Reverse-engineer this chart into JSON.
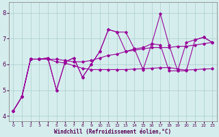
{
  "xlabel": "Windchill (Refroidissement éolien,°C)",
  "x_values": [
    0,
    1,
    2,
    3,
    4,
    5,
    6,
    7,
    8,
    9,
    10,
    11,
    12,
    13,
    14,
    15,
    16,
    17,
    18,
    19,
    20,
    21,
    22,
    23
  ],
  "line1": [
    4.2,
    4.75,
    6.2,
    6.2,
    6.25,
    5.0,
    6.1,
    6.25,
    5.5,
    6.0,
    6.5,
    7.35,
    7.25,
    7.25,
    6.6,
    6.65,
    6.8,
    7.95,
    6.75,
    5.75,
    5.75,
    6.95,
    7.05,
    6.85
  ],
  "line2": [
    4.2,
    4.75,
    6.2,
    6.2,
    6.2,
    6.2,
    6.15,
    6.1,
    6.1,
    6.15,
    6.25,
    6.35,
    6.4,
    6.5,
    6.55,
    6.6,
    6.65,
    6.65,
    6.65,
    6.7,
    6.7,
    6.75,
    6.8,
    6.85
  ],
  "line3": [
    4.2,
    4.75,
    6.2,
    6.2,
    6.2,
    6.1,
    6.05,
    5.95,
    5.85,
    5.8,
    5.8,
    5.8,
    5.8,
    5.8,
    5.82,
    5.83,
    5.85,
    5.87,
    5.88,
    5.82,
    5.78,
    5.8,
    5.82,
    5.83
  ],
  "line4": [
    4.2,
    4.75,
    6.2,
    6.2,
    6.25,
    5.0,
    6.1,
    6.25,
    5.5,
    6.0,
    6.5,
    7.35,
    7.25,
    6.5,
    6.6,
    5.8,
    6.8,
    6.75,
    5.75,
    5.75,
    6.85,
    6.95,
    7.05,
    6.85
  ],
  "line_color": "#990099",
  "bg_color": "#d5eeed",
  "grid_color": "#aacccc",
  "ylim": [
    3.8,
    8.4
  ],
  "xlim": [
    -0.5,
    23.5
  ],
  "yticks": [
    4,
    5,
    6,
    7,
    8
  ],
  "xticks": [
    0,
    1,
    2,
    3,
    4,
    5,
    6,
    7,
    8,
    9,
    10,
    11,
    12,
    13,
    14,
    15,
    16,
    17,
    18,
    19,
    20,
    21,
    22,
    23
  ]
}
